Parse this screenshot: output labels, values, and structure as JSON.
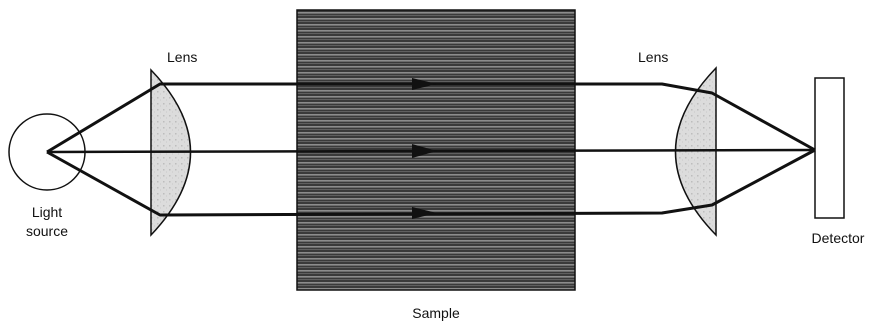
{
  "labels": {
    "lens_left": "Lens",
    "lens_right": "Lens",
    "light_source_line1": "Light",
    "light_source_line2": "source",
    "sample": "Sample",
    "detector": "Detector"
  },
  "colors": {
    "ink": "#111111",
    "lens_fill": "#d9d9d9",
    "sample_fill": "#3a3a3a",
    "sample_stripe": "#8c8c8c"
  }
}
